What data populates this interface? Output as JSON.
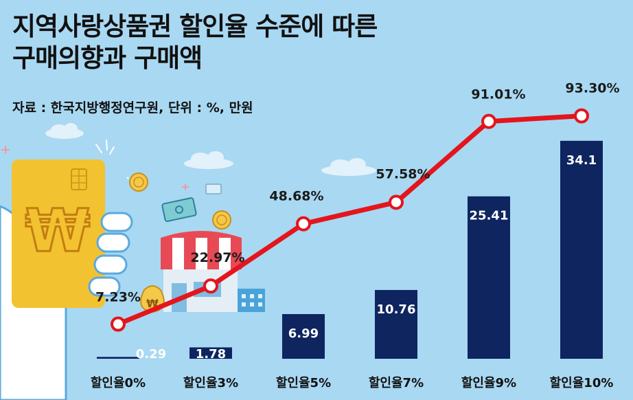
{
  "header": {
    "title_line1": "지역사랑상품권 할인율 수준에 따른",
    "title_line2": "구매의향과 구매액",
    "source": "자료 : 한국지방행정연구원, 단위 : %, 만원"
  },
  "illustration": {
    "card_symbol": "₩",
    "bag_symbol": "₩"
  },
  "colors": {
    "background": "#a9d8f2",
    "bar": "#0e2560",
    "line": "#e4151d",
    "card": "#f2c230",
    "awning_red": "#e84a55"
  },
  "chart_data": {
    "type": "bar",
    "title": "지역사랑상품권 할인율 수준에 따른 구매의향과 구매액",
    "categories": [
      "할인율0%",
      "할인율3%",
      "할인율5%",
      "할인율7%",
      "할인율9%",
      "할인율10%"
    ],
    "series": [
      {
        "name": "구매액",
        "kind": "bar",
        "unit": "만원",
        "values": [
          0.29,
          1.78,
          6.99,
          10.76,
          25.41,
          34.1
        ],
        "labels": [
          "0.29",
          "1.78",
          "6.99",
          "10.76",
          "25.41",
          "34.1"
        ]
      },
      {
        "name": "구매의향",
        "kind": "line",
        "unit": "%",
        "values": [
          7.23,
          22.97,
          48.68,
          57.58,
          91.01,
          93.3
        ],
        "labels": [
          "7.23%",
          "22.97%",
          "48.68%",
          "57.58%",
          "91.01%",
          "93.30%"
        ]
      }
    ],
    "xlabel": "",
    "ylabel": "",
    "legend": "none",
    "grid": false
  }
}
